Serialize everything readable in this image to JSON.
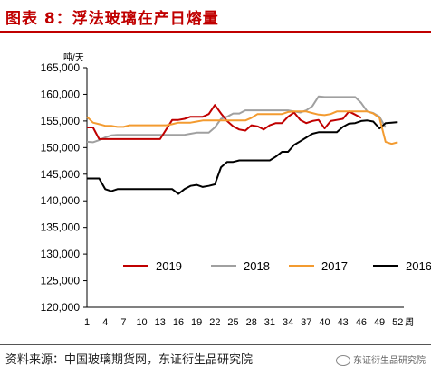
{
  "header": {
    "title": "图表 8：浮法玻璃在产日熔量"
  },
  "footer": {
    "source": "资料来源：中国玻璃期货网，东证衍生品研究院"
  },
  "watermark": {
    "text": "东证衍生品研究院",
    "icon": "wechat-icon"
  },
  "chart_data": {
    "type": "line",
    "unit_label": "吨/天",
    "xlabel": "周",
    "ylim": [
      120000,
      165000
    ],
    "yticks": [
      120000,
      125000,
      130000,
      135000,
      140000,
      145000,
      150000,
      155000,
      160000,
      165000
    ],
    "ytick_labels": [
      "120,000",
      "125,000",
      "130,000",
      "135,000",
      "140,000",
      "145,000",
      "150,000",
      "155,000",
      "160,000",
      "165,000"
    ],
    "xlim": [
      1,
      53
    ],
    "xticks": [
      1,
      4,
      7,
      10,
      13,
      16,
      19,
      22,
      25,
      28,
      31,
      34,
      37,
      40,
      43,
      46,
      49,
      52
    ],
    "xtick_labels": [
      "1",
      "4",
      "7",
      "10",
      "13",
      "16",
      "19",
      "22",
      "25",
      "28",
      "31",
      "34",
      "37",
      "40",
      "43",
      "46",
      "49",
      "52"
    ],
    "grid": false,
    "legend_position": "bottom-center",
    "series": [
      {
        "name": "2019",
        "color": "#c00000",
        "x_start": 1,
        "values": [
          153800,
          153800,
          151600,
          151600,
          151600,
          151600,
          151600,
          151600,
          151600,
          151600,
          151600,
          151600,
          151600,
          153400,
          155200,
          155200,
          155400,
          155800,
          155800,
          155800,
          156300,
          158000,
          156400,
          155000,
          154000,
          153400,
          153200,
          154200,
          154000,
          153400,
          154200,
          154600,
          154600,
          155800,
          156600,
          155200,
          154600,
          155000,
          155200,
          153600,
          155000,
          155200,
          155400,
          156800,
          156200,
          155600
        ]
      },
      {
        "name": "2018",
        "color": "#a0a0a0",
        "x_start": 1,
        "values": [
          151100,
          151000,
          151400,
          151900,
          152300,
          152400,
          152400,
          152400,
          152400,
          152400,
          152400,
          152400,
          152400,
          152400,
          152400,
          152400,
          152400,
          152600,
          152800,
          152800,
          152800,
          153800,
          155400,
          155800,
          156400,
          156400,
          157000,
          157000,
          157000,
          157000,
          157000,
          157000,
          157000,
          157000,
          156800,
          156600,
          157000,
          157800,
          159600,
          159500,
          159500,
          159500,
          159500,
          159500,
          159500,
          158400,
          156800,
          156500,
          155800,
          153800
        ]
      },
      {
        "name": "2017",
        "color": "#f39b30",
        "x_start": 1,
        "values": [
          155800,
          154700,
          154400,
          154100,
          154100,
          153900,
          153900,
          154200,
          154200,
          154200,
          154200,
          154200,
          154200,
          154200,
          154400,
          154700,
          154700,
          154700,
          154900,
          155100,
          155100,
          155100,
          155100,
          155100,
          155100,
          155100,
          155100,
          155600,
          156300,
          156300,
          156300,
          156300,
          156300,
          156700,
          156800,
          156800,
          156800,
          156500,
          156200,
          156100,
          156300,
          156800,
          156800,
          156800,
          156800,
          156800,
          156800,
          156400,
          155600,
          151100,
          150700,
          151000
        ]
      },
      {
        "name": "2016",
        "color": "#000000",
        "x_start": 1,
        "values": [
          144200,
          144200,
          144200,
          142200,
          141800,
          142200,
          142200,
          142200,
          142200,
          142200,
          142200,
          142200,
          142200,
          142200,
          142200,
          141300,
          142200,
          142800,
          143000,
          142600,
          142800,
          143100,
          146300,
          147300,
          147300,
          147600,
          147600,
          147600,
          147600,
          147600,
          147600,
          148300,
          149200,
          149200,
          150500,
          151200,
          151900,
          152600,
          152900,
          152900,
          152900,
          152900,
          153900,
          154500,
          154600,
          155000,
          155100,
          154900,
          153600,
          154600,
          154700,
          154800
        ]
      }
    ]
  }
}
